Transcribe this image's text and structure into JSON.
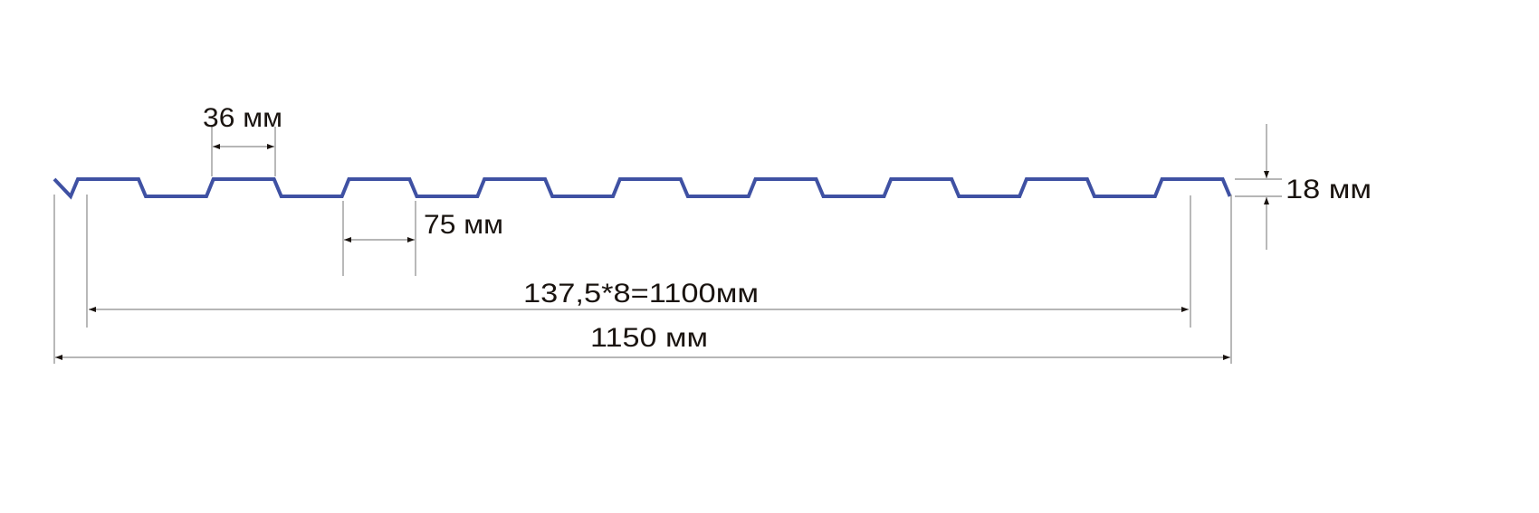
{
  "colors": {
    "profile": "#3f51a3",
    "dimension_line": "#8a8a8a",
    "arrow": "#1a1410",
    "text": "#1a1410"
  },
  "labels": {
    "crest_width": "36 мм",
    "valley_width": "75 мм",
    "height": "18 мм",
    "useful_width": "137,5*8=1100мм",
    "total_width": "1150 мм"
  }
}
